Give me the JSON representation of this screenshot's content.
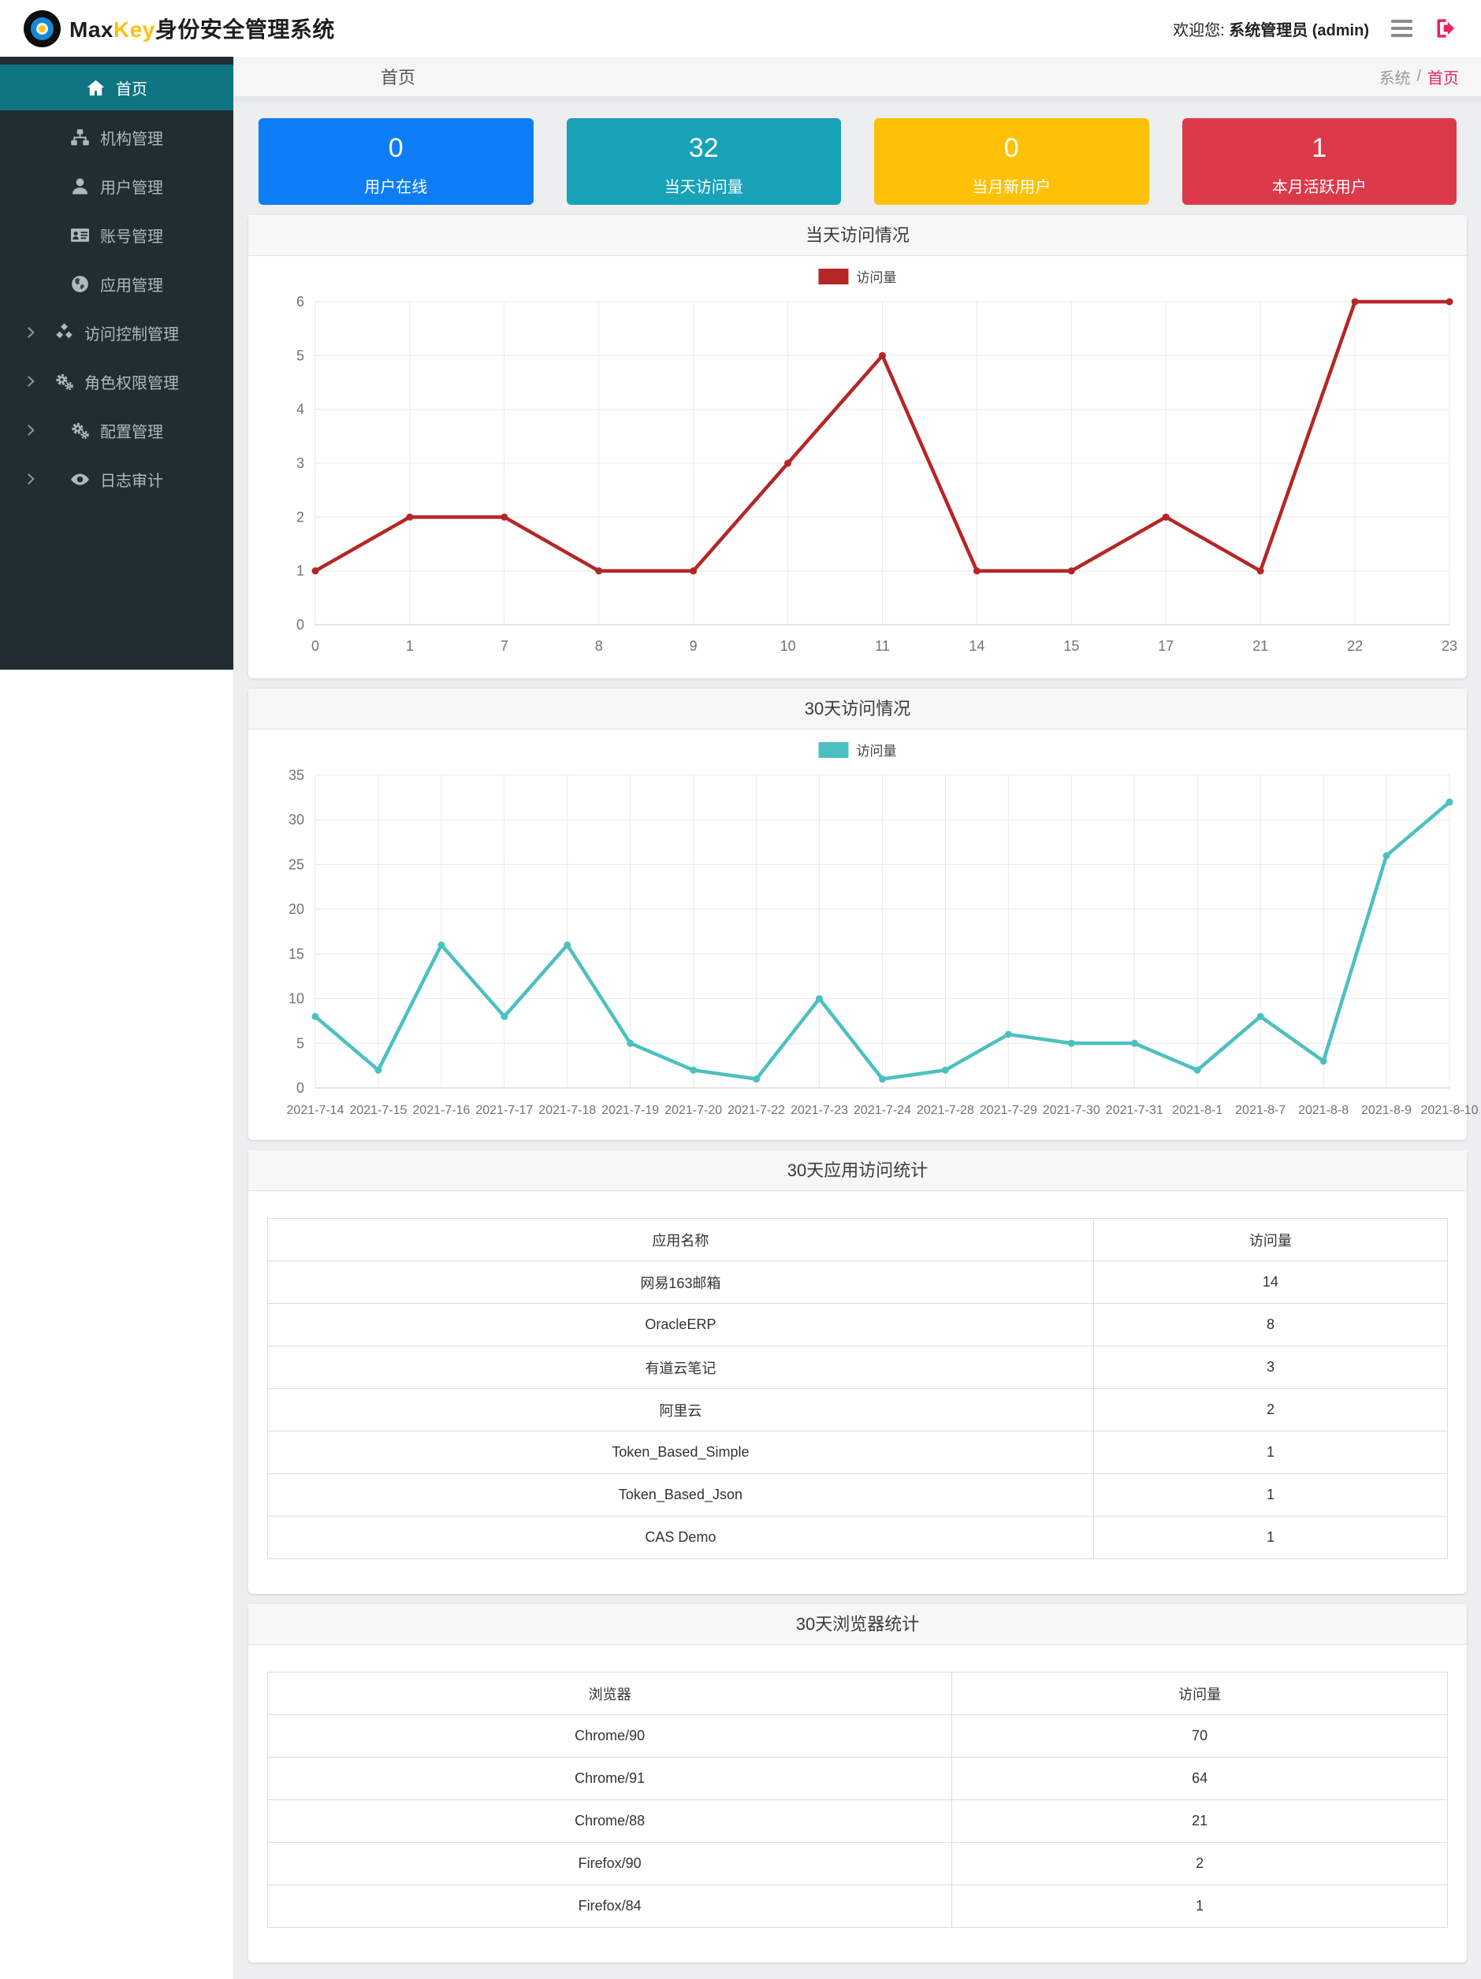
{
  "app": {
    "logo_prefix": "Max",
    "logo_accent": "Key",
    "logo_suffix": "身份安全管理系统",
    "welcome_label": "欢迎您:",
    "welcome_user": "系统管理员 (admin)"
  },
  "sidebar": {
    "items": [
      {
        "id": "home",
        "icon": "home-icon",
        "label": "首页",
        "active": true,
        "expandable": false
      },
      {
        "id": "org",
        "icon": "sitemap-icon",
        "label": "机构管理",
        "active": false,
        "expandable": false
      },
      {
        "id": "user",
        "icon": "user-icon",
        "label": "用户管理",
        "active": false,
        "expandable": false
      },
      {
        "id": "account",
        "icon": "idcard-icon",
        "label": "账号管理",
        "active": false,
        "expandable": false
      },
      {
        "id": "app",
        "icon": "globe-icon",
        "label": "应用管理",
        "active": false,
        "expandable": false
      },
      {
        "id": "access",
        "icon": "cubes-icon",
        "label": "访问控制管理",
        "active": false,
        "expandable": true
      },
      {
        "id": "role",
        "icon": "gears-icon",
        "label": "角色权限管理",
        "active": false,
        "expandable": true
      },
      {
        "id": "config",
        "icon": "gears-icon",
        "label": "配置管理",
        "active": false,
        "expandable": true
      },
      {
        "id": "audit",
        "icon": "eye-icon",
        "label": "日志审计",
        "active": false,
        "expandable": true
      }
    ]
  },
  "content_header": {
    "title": "首页",
    "breadcrumb_root": "系统",
    "breadcrumb_separator": "/",
    "breadcrumb_current": "首页"
  },
  "stat_cards": [
    {
      "value": "0",
      "label": "用户在线",
      "color": "#0d7df6"
    },
    {
      "value": "32",
      "label": "当天访问量",
      "color": "#17a2b8"
    },
    {
      "value": "0",
      "label": "当月新用户",
      "color": "#fec108"
    },
    {
      "value": "1",
      "label": "本月活跃用户",
      "color": "#dc3a4b"
    }
  ],
  "chart_data": [
    {
      "type": "line",
      "title": "当天访问情况",
      "legend": "访问量",
      "color": "#b52626",
      "categories": [
        "0",
        "1",
        "7",
        "8",
        "9",
        "10",
        "11",
        "14",
        "15",
        "17",
        "21",
        "22",
        "23"
      ],
      "values": [
        1,
        2,
        2,
        1,
        1,
        3,
        5,
        1,
        1,
        2,
        1,
        6,
        6
      ],
      "xlabel": "",
      "ylabel": "",
      "ylim": [
        0,
        6
      ],
      "ytick": 1,
      "grid": true,
      "legend_position": "top"
    },
    {
      "type": "line",
      "title": "30天访问情况",
      "legend": "访问量",
      "color": "#4cc0c0",
      "categories": [
        "2021-7-14",
        "2021-7-15",
        "2021-7-16",
        "2021-7-17",
        "2021-7-18",
        "2021-7-19",
        "2021-7-20",
        "2021-7-22",
        "2021-7-23",
        "2021-7-24",
        "2021-7-28",
        "2021-7-29",
        "2021-7-30",
        "2021-7-31",
        "2021-8-1",
        "2021-8-7",
        "2021-8-8",
        "2021-8-9",
        "2021-8-10"
      ],
      "values": [
        8,
        2,
        16,
        8,
        16,
        5,
        2,
        1,
        10,
        1,
        2,
        6,
        5,
        5,
        2,
        8,
        3,
        26,
        32
      ],
      "xlabel": "",
      "ylabel": "",
      "ylim": [
        0,
        35
      ],
      "ytick": 5,
      "grid": true,
      "legend_position": "top"
    }
  ],
  "tables": [
    {
      "title": "30天应用访问统计",
      "columns": [
        "应用名称",
        "访问量"
      ],
      "col_widths": [
        "70%",
        "30%"
      ],
      "rows": [
        [
          "网易163邮箱",
          "14"
        ],
        [
          "OracleERP",
          "8"
        ],
        [
          "有道云笔记",
          "3"
        ],
        [
          "阿里云",
          "2"
        ],
        [
          "Token_Based_Simple",
          "1"
        ],
        [
          "Token_Based_Json",
          "1"
        ],
        [
          "CAS Demo",
          "1"
        ]
      ]
    },
    {
      "title": "30天浏览器统计",
      "columns": [
        "浏览器",
        "访问量"
      ],
      "col_widths": [
        "58%",
        "42%"
      ],
      "rows": [
        [
          "Chrome/90",
          "70"
        ],
        [
          "Chrome/91",
          "64"
        ],
        [
          "Chrome/88",
          "21"
        ],
        [
          "Firefox/90",
          "2"
        ],
        [
          "Firefox/84",
          "1"
        ]
      ]
    }
  ]
}
